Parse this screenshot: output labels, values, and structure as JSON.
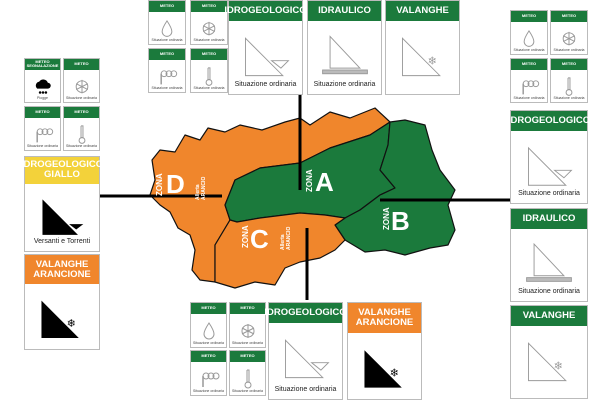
{
  "colors": {
    "green": "#1b7a3c",
    "orange": "#f0862c",
    "yellow": "#f3d23a",
    "black": "#000000"
  },
  "map": {
    "zones": [
      {
        "zona": "ZONA",
        "letter": "D",
        "alert": "Allerta",
        "level": "ARANCIO",
        "color": "orange"
      },
      {
        "zona": "ZONA",
        "letter": "A",
        "color": "green"
      },
      {
        "zona": "ZONA",
        "letter": "B",
        "color": "green"
      },
      {
        "zona": "ZONA",
        "letter": "C",
        "alert": "Allerta",
        "level": "ARANCIO",
        "color": "orange"
      }
    ]
  },
  "panels": {
    "top": {
      "meteo": [
        {
          "label": "METEO",
          "icon": "drop-icon",
          "status": "Situazione ordinaria"
        },
        {
          "label": "METEO",
          "icon": "snowflake-icon",
          "status": "Situazione ordinaria"
        },
        {
          "label": "METEO",
          "icon": "wind-icon",
          "status": "Situazione ordinaria"
        },
        {
          "label": "METEO",
          "icon": "thermometer-icon",
          "status": "Situazione ordinaria"
        }
      ],
      "risks": [
        {
          "label": "IDROGEOLOGICO",
          "icon": "hydrogeological-icon",
          "status": "Situazione ordinaria",
          "color": "green",
          "active": false
        },
        {
          "label": "IDRAULICO",
          "icon": "hydraulic-icon",
          "status": "Situazione ordinaria",
          "color": "green",
          "active": false
        },
        {
          "label": "VALANGHE",
          "icon": "avalanche-icon",
          "status": "",
          "color": "green",
          "active": false
        }
      ]
    },
    "left": {
      "meteo": [
        {
          "label": "METEO SEGNALAZIONE",
          "icon": "rain-cloud-icon",
          "status": "Piogge",
          "active": true
        },
        {
          "label": "METEO",
          "icon": "snowflake-icon",
          "status": "Situazione ordinaria"
        },
        {
          "label": "METEO",
          "icon": "wind-icon",
          "status": "Situazione ordinaria"
        },
        {
          "label": "METEO",
          "icon": "thermometer-icon",
          "status": "Situazione ordinaria"
        }
      ],
      "risks": [
        {
          "label": "IDROGEOLOGICO GIALLO",
          "icon": "hydrogeological-icon",
          "status": "Versanti e Torrenti",
          "color": "yellow",
          "active": true
        },
        {
          "label": "VALANGHE ARANCIONE",
          "icon": "avalanche-icon",
          "status": "",
          "color": "orange",
          "active": true
        }
      ]
    },
    "right": {
      "meteo": [
        {
          "label": "METEO",
          "icon": "drop-icon",
          "status": "Situazione ordinaria"
        },
        {
          "label": "METEO",
          "icon": "snowflake-icon",
          "status": "Situazione ordinaria"
        },
        {
          "label": "METEO",
          "icon": "wind-icon",
          "status": "Situazione ordinaria"
        },
        {
          "label": "METEO",
          "icon": "thermometer-icon",
          "status": "Situazione ordinaria"
        }
      ],
      "risks": [
        {
          "label": "IDROGEOLOGICO",
          "icon": "hydrogeological-icon",
          "status": "Situazione ordinaria",
          "color": "green",
          "active": false
        },
        {
          "label": "IDRAULICO",
          "icon": "hydraulic-icon",
          "status": "Situazione ordinaria",
          "color": "green",
          "active": false
        },
        {
          "label": "VALANGHE",
          "icon": "avalanche-icon",
          "status": "",
          "color": "green",
          "active": false
        }
      ]
    },
    "bottom": {
      "meteo": [
        {
          "label": "METEO",
          "icon": "drop-icon",
          "status": "Situazione ordinaria"
        },
        {
          "label": "METEO",
          "icon": "snowflake-icon",
          "status": "Situazione ordinaria"
        },
        {
          "label": "METEO",
          "icon": "wind-icon",
          "status": "Situazione ordinaria"
        },
        {
          "label": "METEO",
          "icon": "thermometer-icon",
          "status": "Situazione ordinaria"
        }
      ],
      "risks": [
        {
          "label": "IDROGEOLOGICO",
          "icon": "hydrogeological-icon",
          "status": "Situazione ordinaria",
          "color": "green",
          "active": false
        },
        {
          "label": "VALANGHE ARANCIONE",
          "icon": "avalanche-icon",
          "status": "",
          "color": "orange",
          "active": true
        }
      ]
    }
  }
}
